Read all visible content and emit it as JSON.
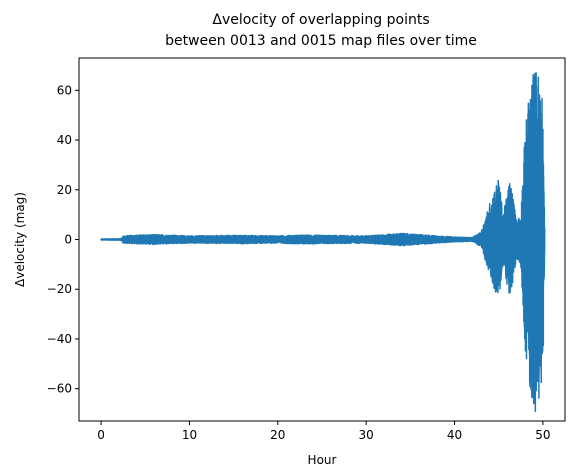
{
  "chart_data": {
    "type": "line",
    "title_line1": "Δvelocity of overlapping points",
    "title_line2": "between 0013 and 0015 map files over time",
    "xlabel": "Hour",
    "ylabel": "Δvelocity (mag)",
    "xlim": [
      -2.5,
      52.5
    ],
    "ylim": [
      -73,
      73
    ],
    "xticks": [
      0,
      10,
      20,
      30,
      40,
      50
    ],
    "yticks": [
      -60,
      -40,
      -20,
      0,
      20,
      40,
      60
    ],
    "grid": false,
    "color": "#1f77b4",
    "envelope": [
      {
        "x": 0,
        "amp": 0.2
      },
      {
        "x": 2.3,
        "amp": 0.3
      },
      {
        "x": 2.5,
        "amp": 1.5
      },
      {
        "x": 4,
        "amp": 1.8
      },
      {
        "x": 6,
        "amp": 2.0
      },
      {
        "x": 10,
        "amp": 1.5
      },
      {
        "x": 16,
        "amp": 1.7
      },
      {
        "x": 20,
        "amp": 1.5
      },
      {
        "x": 22.5,
        "amp": 1.8
      },
      {
        "x": 30,
        "amp": 1.5
      },
      {
        "x": 34,
        "amp": 2.5
      },
      {
        "x": 40,
        "amp": 1.0
      },
      {
        "x": 42,
        "amp": 0.8
      },
      {
        "x": 43,
        "amp": 3
      },
      {
        "x": 44,
        "amp": 15
      },
      {
        "x": 45,
        "amp": 25
      },
      {
        "x": 45.5,
        "amp": 10
      },
      {
        "x": 46.3,
        "amp": 25
      },
      {
        "x": 47,
        "amp": 8
      },
      {
        "x": 47.5,
        "amp": 10
      },
      {
        "x": 48,
        "amp": 45
      },
      {
        "x": 48.5,
        "amp": 60
      },
      {
        "x": 49,
        "amp": 70
      },
      {
        "x": 49.5,
        "amp": 67
      },
      {
        "x": 50,
        "amp": 55
      },
      {
        "x": 50.2,
        "amp": 5
      }
    ]
  }
}
